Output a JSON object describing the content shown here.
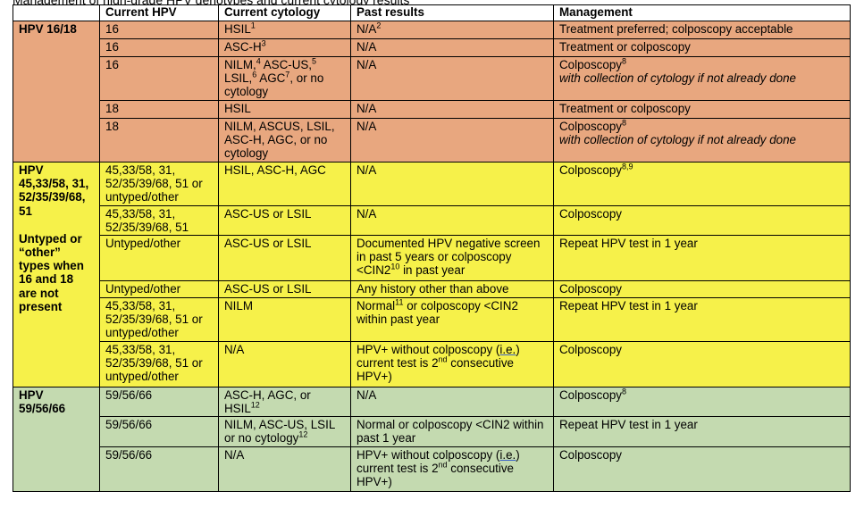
{
  "caption": "Management of high-grade HPV genotypes and current cytology results",
  "headers": [
    "",
    "Current HPV",
    "Current cytology",
    "Past results",
    "Management"
  ],
  "groups": {
    "g1": [
      "HPV 16/18"
    ],
    "g2": [
      "HPV",
      "45,33/58, 31,",
      "52/35/39/68,",
      "51",
      "",
      "Untyped or",
      "“other”",
      "types when",
      "16 and 18",
      "are not",
      "present"
    ],
    "g3": [
      "HPV",
      "59/56/66"
    ]
  },
  "rows": [
    {
      "hpv": "16",
      "cyto": "HSIL",
      "cyto_sup": "1",
      "past": "N/A",
      "past_sup": "2",
      "mgmt": "Treatment preferred; colposcopy acceptable"
    },
    {
      "hpv": "16",
      "cyto": "ASC-H",
      "cyto_sup": "3",
      "past": "N/A",
      "mgmt": "Treatment or colposcopy"
    },
    {
      "hpv": "16",
      "cyto_a": "NILM,",
      "cyto_a_sup": "4",
      "cyto_b": " ASC-US,",
      "cyto_b_sup": "5",
      "cyto_c": "LSIL,",
      "cyto_c_sup": "6",
      "cyto_d": " AGC",
      "cyto_d_sup": "7",
      "cyto_e": ", or no cytology",
      "past": "N/A",
      "mgmt": "Colposcopy",
      "mgmt_sup": "8",
      "mgmt_note": "with collection of cytology if not already done"
    },
    {
      "hpv": "18",
      "cyto": "HSIL",
      "past": "N/A",
      "mgmt": "Treatment or colposcopy"
    },
    {
      "hpv": "18",
      "cyto": "NILM, ASCUS, LSIL, ASC-H, AGC, or no cytology",
      "past": "N/A",
      "mgmt": "Colposcopy",
      "mgmt_sup": "8",
      "mgmt_note": "with collection of cytology if not already done"
    },
    {
      "hpv": "45,33/58, 31, 52/35/39/68, 51 or untyped/other",
      "cyto": "HSIL, ASC-H, AGC",
      "past": "N/A",
      "mgmt": "Colposcopy",
      "mgmt_sup": "8,9"
    },
    {
      "hpv": "45,33/58, 31, 52/35/39/68, 51",
      "cyto": "ASC-US or LSIL",
      "past": "N/A",
      "mgmt": "Colposcopy"
    },
    {
      "hpv": "Untyped/other",
      "cyto": "ASC-US or LSIL",
      "past_a": "Documented HPV negative screen in past 5 years or colposcopy <CIN2",
      "past_a_sup": "10",
      "past_b": " in past year",
      "mgmt": "Repeat HPV test in 1 year"
    },
    {
      "hpv": "Untyped/other",
      "cyto": "ASC-US or LSIL",
      "past": "Any history other than above",
      "mgmt": "Colposcopy"
    },
    {
      "hpv": "45,33/58, 31, 52/35/39/68, 51 or untyped/other",
      "cyto": "NILM",
      "past_a": "Normal",
      "past_a_sup": "11",
      "past_b": " or colposcopy <CIN2 within past year",
      "mgmt": "Repeat HPV test in 1 year"
    },
    {
      "hpv": "45,33/58, 31, 52/35/39/68, 51 or untyped/other",
      "cyto": "N/A",
      "past_a": "HPV+ without colposcopy (",
      "past_u": "i.e.",
      "past_b": " current test is 2",
      "past_b_sup": "nd",
      "past_c": " consecutive HPV+)",
      "mgmt": "Colposcopy"
    },
    {
      "hpv": "59/56/66",
      "cyto": "ASC-H, AGC, or HSIL",
      "cyto_sup": "12",
      "past": "N/A",
      "mgmt": "Colposcopy",
      "mgmt_sup": "8"
    },
    {
      "hpv": "59/56/66",
      "cyto": "NILM, ASC-US, LSIL or no cytology",
      "cyto_sup": "12",
      "past": "Normal or colposcopy <CIN2 within past 1 year",
      "mgmt": "Repeat HPV test in 1 year"
    },
    {
      "hpv": "59/56/66",
      "cyto": "N/A",
      "past_a": "HPV+ without colposcopy (",
      "past_u": "i.e.",
      "past_b": " current test is 2",
      "past_b_sup": "nd",
      "past_c": " consecutive HPV+)",
      "mgmt": "Colposcopy"
    }
  ]
}
